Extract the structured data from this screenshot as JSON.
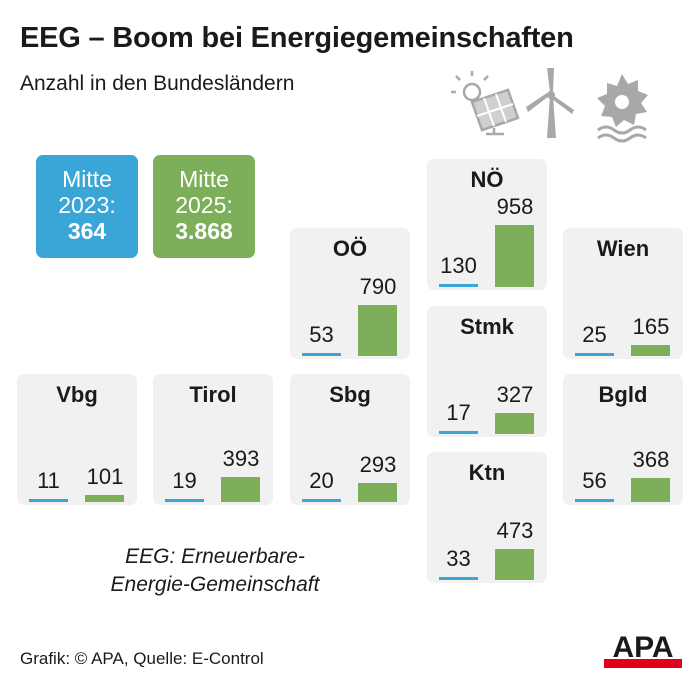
{
  "header": {
    "title": "EEG – Boom bei Energiegemeinschaften",
    "subtitle": "Anzahl in den Bundesländern"
  },
  "legend": {
    "old": {
      "line1": "Mitte",
      "line2": "2023:",
      "total": "364",
      "color": "#3aa6d8"
    },
    "new": {
      "line1": "Mitte",
      "line2": "2025:",
      "total": "3.868",
      "color": "#7daf5a"
    }
  },
  "chart_data": {
    "type": "bar",
    "series": [
      {
        "name": "Mitte 2023",
        "total": 364
      },
      {
        "name": "Mitte 2025",
        "total": 3868
      }
    ],
    "regions": [
      {
        "name": "NÖ",
        "v2023": 130,
        "v2025": 958
      },
      {
        "name": "OÖ",
        "v2023": 53,
        "v2025": 790
      },
      {
        "name": "Wien",
        "v2023": 25,
        "v2025": 165
      },
      {
        "name": "Stmk",
        "v2023": 17,
        "v2025": 327
      },
      {
        "name": "Vbg",
        "v2023": 11,
        "v2025": 101
      },
      {
        "name": "Tirol",
        "v2023": 19,
        "v2025": 393
      },
      {
        "name": "Sbg",
        "v2023": 20,
        "v2025": 293
      },
      {
        "name": "Bgld",
        "v2023": 56,
        "v2025": 368
      },
      {
        "name": "Ktn",
        "v2023": 33,
        "v2025": 473
      }
    ]
  },
  "note": {
    "line1": "EEG: Erneuerbare-",
    "line2": "Energie-Gemeinschaft"
  },
  "footer": {
    "source": "Grafik: © APA, Quelle: E-Control",
    "logo_text": "APA"
  },
  "icons": [
    "solar-panel-icon",
    "wind-turbine-icon",
    "hydro-turbine-icon"
  ]
}
